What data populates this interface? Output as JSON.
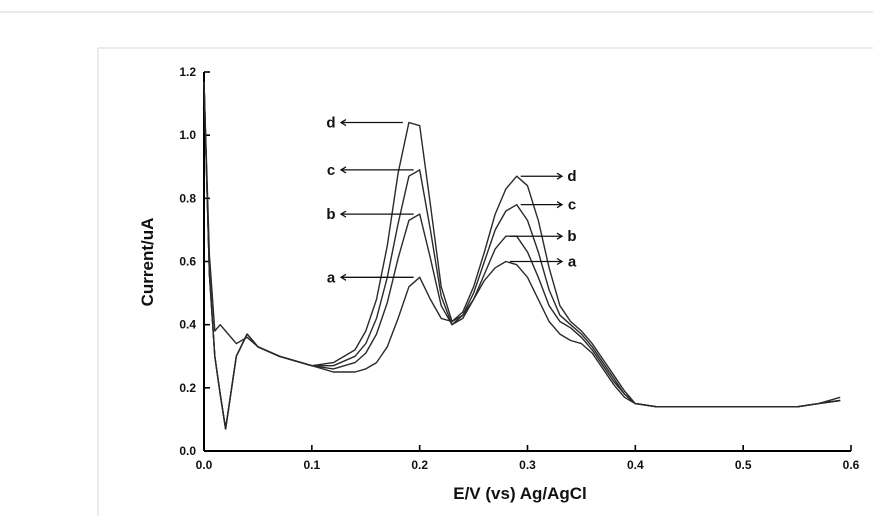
{
  "chart_data": {
    "type": "line",
    "xlabel": "E/V (vs) Ag/AgCl",
    "ylabel": "Current/uA",
    "xlim": [
      0.0,
      0.6
    ],
    "ylim": [
      0.0,
      1.2
    ],
    "xticks": [
      "0.0",
      "0.1",
      "0.2",
      "0.3",
      "0.4",
      "0.5",
      "0.6"
    ],
    "yticks": [
      "0.0",
      "0.2",
      "0.4",
      "0.6",
      "0.8",
      "1.0",
      "1.2"
    ],
    "grid": false,
    "legend": "inline labels with arrows",
    "x": [
      0.0,
      0.005,
      0.01,
      0.015,
      0.02,
      0.03,
      0.04,
      0.05,
      0.07,
      0.1,
      0.12,
      0.14,
      0.15,
      0.16,
      0.17,
      0.18,
      0.19,
      0.2,
      0.21,
      0.22,
      0.23,
      0.24,
      0.25,
      0.26,
      0.27,
      0.28,
      0.29,
      0.3,
      0.31,
      0.32,
      0.33,
      0.34,
      0.35,
      0.36,
      0.37,
      0.38,
      0.39,
      0.4,
      0.42,
      0.45,
      0.5,
      0.55,
      0.57,
      0.59
    ],
    "series": [
      {
        "name": "a",
        "values": [
          1.17,
          0.62,
          0.38,
          0.4,
          0.38,
          0.34,
          0.36,
          0.33,
          0.3,
          0.27,
          0.25,
          0.25,
          0.26,
          0.28,
          0.33,
          0.42,
          0.52,
          0.55,
          0.48,
          0.42,
          0.41,
          0.43,
          0.48,
          0.54,
          0.58,
          0.6,
          0.59,
          0.55,
          0.48,
          0.41,
          0.37,
          0.35,
          0.34,
          0.31,
          0.26,
          0.21,
          0.17,
          0.15,
          0.14,
          0.14,
          0.14,
          0.14,
          0.15,
          0.16
        ]
      },
      {
        "name": "b",
        "values": [
          1.17,
          0.56,
          0.3,
          0.18,
          0.07,
          0.3,
          0.37,
          0.33,
          0.3,
          0.27,
          0.26,
          0.28,
          0.31,
          0.37,
          0.47,
          0.61,
          0.73,
          0.75,
          0.61,
          0.46,
          0.4,
          0.42,
          0.48,
          0.56,
          0.64,
          0.68,
          0.68,
          0.63,
          0.55,
          0.46,
          0.41,
          0.39,
          0.36,
          0.32,
          0.27,
          0.22,
          0.18,
          0.15,
          0.14,
          0.14,
          0.14,
          0.14,
          0.15,
          0.16
        ]
      },
      {
        "name": "c",
        "values": [
          1.17,
          0.56,
          0.3,
          0.18,
          0.07,
          0.3,
          0.37,
          0.33,
          0.3,
          0.27,
          0.27,
          0.3,
          0.34,
          0.42,
          0.55,
          0.72,
          0.87,
          0.89,
          0.7,
          0.49,
          0.4,
          0.43,
          0.5,
          0.6,
          0.7,
          0.76,
          0.78,
          0.73,
          0.63,
          0.51,
          0.43,
          0.4,
          0.37,
          0.33,
          0.28,
          0.23,
          0.18,
          0.15,
          0.14,
          0.14,
          0.14,
          0.14,
          0.15,
          0.16
        ]
      },
      {
        "name": "d",
        "values": [
          1.17,
          0.56,
          0.3,
          0.18,
          0.07,
          0.3,
          0.37,
          0.33,
          0.3,
          0.27,
          0.28,
          0.32,
          0.38,
          0.48,
          0.65,
          0.88,
          1.04,
          1.03,
          0.78,
          0.52,
          0.41,
          0.44,
          0.52,
          0.63,
          0.75,
          0.83,
          0.87,
          0.84,
          0.73,
          0.58,
          0.46,
          0.41,
          0.38,
          0.34,
          0.29,
          0.24,
          0.19,
          0.15,
          0.14,
          0.14,
          0.14,
          0.14,
          0.15,
          0.17
        ]
      }
    ]
  }
}
